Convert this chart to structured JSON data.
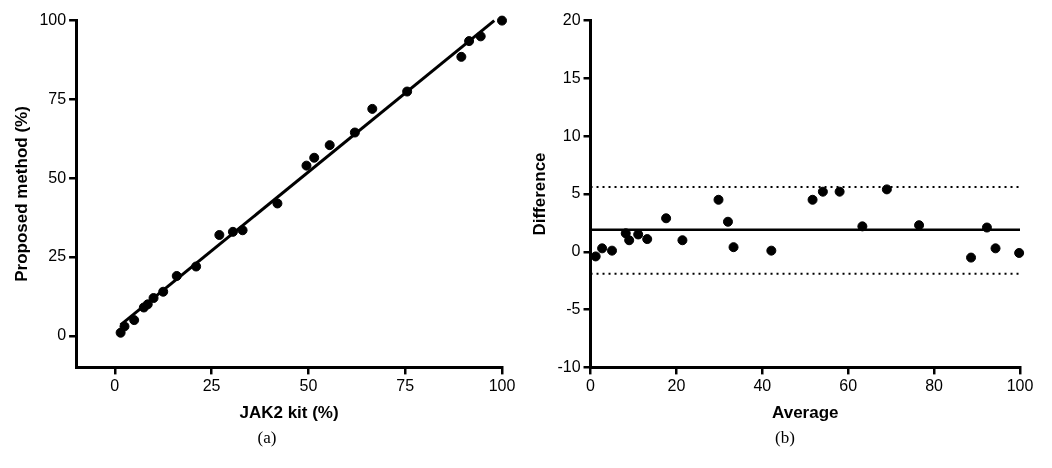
{
  "chart_data": [
    {
      "type": "scatter",
      "xlabel": "JAK2 kit (%)",
      "ylabel": "Proposed method (%)",
      "xlim": [
        -10,
        100
      ],
      "ylim": [
        -10,
        100
      ],
      "xticks": [
        0,
        25,
        50,
        75,
        100
      ],
      "yticks": [
        0,
        25,
        50,
        75,
        100
      ],
      "marker": "circle",
      "annotations": [
        "(a)"
      ],
      "series": [
        {
          "color": "#000000",
          "x": [
            1.5,
            2.5,
            5,
            7.5,
            8.5,
            10,
            12.5,
            16,
            21,
            27,
            30.5,
            33,
            42,
            49.5,
            51.5,
            55.5,
            62,
            66.5,
            75.5,
            89.5,
            91.5,
            94.5,
            100
          ],
          "values": [
            1,
            3,
            5,
            9,
            10,
            12,
            14,
            19,
            22,
            32,
            33,
            33.5,
            42,
            54,
            56.5,
            60.5,
            64.5,
            72,
            77.5,
            88.5,
            93.5,
            95,
            100
          ]
        },
        {
          "type": "line",
          "marker": "none",
          "color": "#000000",
          "x": [
            1.5,
            98
          ],
          "values": [
            3.5,
            100
          ]
        }
      ]
    },
    {
      "type": "scatter",
      "xlabel": "Average",
      "ylabel": "Difference",
      "xlim": [
        0,
        100
      ],
      "ylim": [
        -10,
        20
      ],
      "xticks": [
        0,
        20,
        40,
        60,
        80,
        100
      ],
      "yticks": [
        -10,
        -5,
        0,
        5,
        10,
        15,
        20
      ],
      "marker": "circle",
      "annotations": [
        "(b)"
      ],
      "series": [
        {
          "color": "#000000",
          "x": [
            1.2,
            2.7,
            5.0,
            8.2,
            9.0,
            11.1,
            13.2,
            17.6,
            21.4,
            29.8,
            32.0,
            33.3,
            42.1,
            51.7,
            54.1,
            58.0,
            63.3,
            69.0,
            76.5,
            88.6,
            92.3,
            94.3,
            99.8
          ],
          "values": [
            -0.4,
            0.3,
            0.1,
            1.6,
            1.0,
            1.5,
            1.1,
            2.9,
            1.0,
            4.5,
            2.6,
            0.4,
            0.1,
            4.5,
            5.2,
            5.2,
            2.2,
            5.4,
            2.3,
            -0.5,
            2.1,
            0.3,
            -0.1
          ]
        }
      ],
      "ref_lines": [
        {
          "axis": "y",
          "value": 1.9,
          "line_style": "solid",
          "color": "#000000"
        },
        {
          "axis": "y",
          "value": 5.6,
          "line_style": "dotted",
          "color": "#000000"
        },
        {
          "axis": "y",
          "value": -1.9,
          "line_style": "dotted",
          "color": "#000000"
        }
      ]
    }
  ]
}
